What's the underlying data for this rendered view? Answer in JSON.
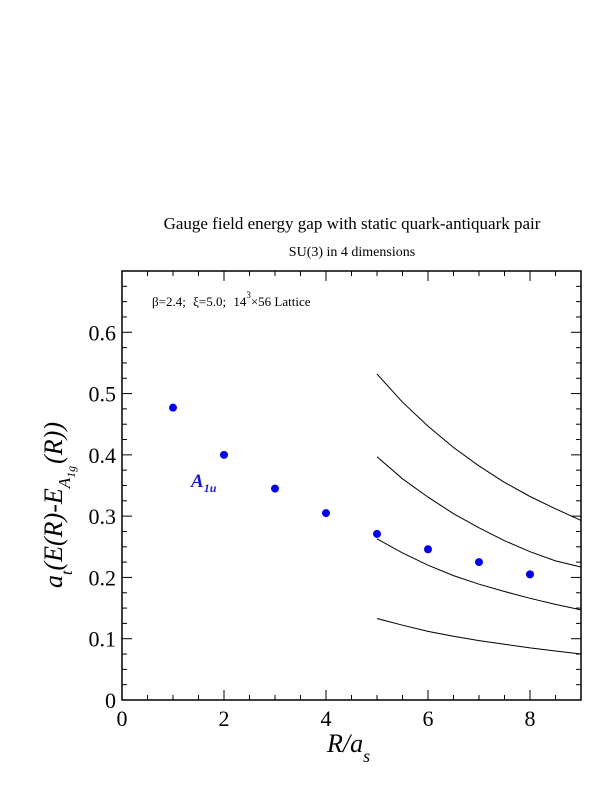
{
  "chart_data": {
    "type": "scatter",
    "title": "Gauge field energy gap with static quark-antiquark pair",
    "subtitle": "SU(3) in 4 dimensions",
    "annotation": {
      "beta": "β=2.4;",
      "xi": "ξ=5.0;",
      "lattice_base": "14",
      "lattice_exp": "3",
      "lattice_rest": "×56 Lattice"
    },
    "xlabel": {
      "main": "R/a",
      "sub": "s"
    },
    "ylabel": {
      "p1": "a",
      "sub_t": "t",
      "p2": "(E(R)-E",
      "sub_a": "A",
      "sub_1g": "1g",
      "p3": "(R))"
    },
    "xlim": [
      0,
      9
    ],
    "ylim": [
      0,
      0.7
    ],
    "x_ticks": [
      "0",
      "2",
      "4",
      "6",
      "8"
    ],
    "y_ticks": [
      "0",
      "0.1",
      "0.2",
      "0.3",
      "0.4",
      "0.5",
      "0.6"
    ],
    "grid": false,
    "series": [
      {
        "name": "A1u",
        "label_main": "A",
        "label_sub": "1u",
        "color": "#0000ee",
        "x": [
          1,
          2,
          3,
          4,
          5,
          6,
          7,
          8
        ],
        "y": [
          0.477,
          0.4,
          0.345,
          0.305,
          0.271,
          0.246,
          0.225,
          0.205
        ]
      }
    ],
    "curves": [
      {
        "x": [
          5,
          5.5,
          6,
          6.5,
          7,
          7.5,
          8,
          8.5,
          9
        ],
        "y": [
          0.532,
          0.486,
          0.447,
          0.412,
          0.382,
          0.355,
          0.332,
          0.312,
          0.293
        ]
      },
      {
        "x": [
          5,
          5.5,
          6,
          6.5,
          7,
          7.5,
          8,
          8.5,
          9
        ],
        "y": [
          0.397,
          0.361,
          0.331,
          0.304,
          0.281,
          0.26,
          0.242,
          0.227,
          0.217
        ]
      },
      {
        "x": [
          5,
          5.5,
          6,
          6.5,
          7,
          7.5,
          8,
          8.5,
          9
        ],
        "y": [
          0.263,
          0.24,
          0.22,
          0.203,
          0.189,
          0.177,
          0.166,
          0.156,
          0.147
        ]
      },
      {
        "x": [
          5,
          5.5,
          6,
          6.5,
          7,
          7.5,
          8,
          8.5,
          9
        ],
        "y": [
          0.133,
          0.122,
          0.112,
          0.104,
          0.097,
          0.091,
          0.085,
          0.08,
          0.075
        ]
      }
    ]
  }
}
